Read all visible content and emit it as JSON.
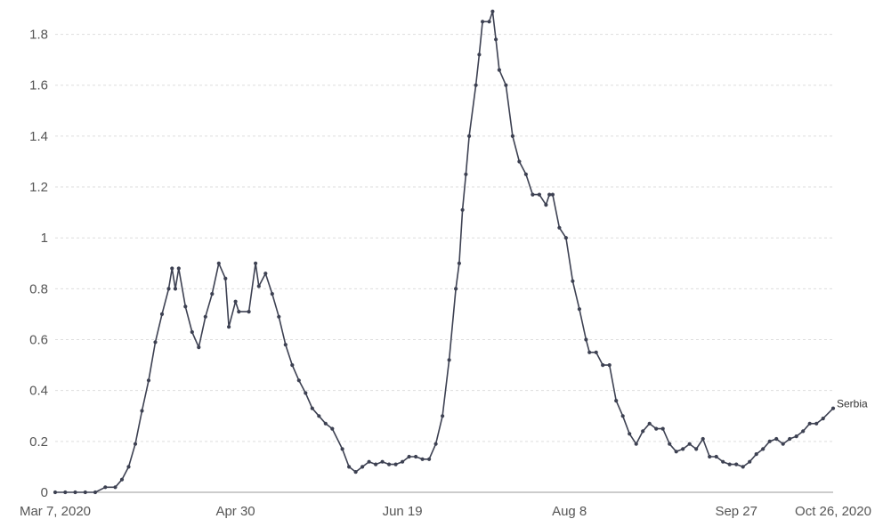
{
  "chart_data": {
    "type": "line",
    "title": "",
    "xlabel": "",
    "ylabel": "",
    "x_ticks": [
      "Mar 7, 2020",
      "Apr 30",
      "Jun 19",
      "Aug 8",
      "Sep 27",
      "Oct 26, 2020"
    ],
    "x_range": [
      "2020-03-07",
      "2020-10-26"
    ],
    "ylim": [
      0,
      1.9
    ],
    "y_ticks": [
      "0",
      "0.2",
      "0.4",
      "0.6",
      "0.8",
      "1",
      "1.2",
      "1.4",
      "1.6",
      "1.8"
    ],
    "y_tick_values": [
      0,
      0.2,
      0.4,
      0.6,
      0.8,
      1.0,
      1.2,
      1.4,
      1.6,
      1.8
    ],
    "grid": true,
    "colors": {
      "line": "#3d4152",
      "grid": "#dddddd"
    },
    "series": [
      {
        "name": "Serbia",
        "points": [
          [
            "2020-03-07",
            0.0
          ],
          [
            "2020-03-10",
            0.0
          ],
          [
            "2020-03-13",
            0.0
          ],
          [
            "2020-03-16",
            0.0
          ],
          [
            "2020-03-19",
            0.0
          ],
          [
            "2020-03-22",
            0.02
          ],
          [
            "2020-03-25",
            0.02
          ],
          [
            "2020-03-27",
            0.05
          ],
          [
            "2020-03-29",
            0.1
          ],
          [
            "2020-03-31",
            0.19
          ],
          [
            "2020-04-02",
            0.32
          ],
          [
            "2020-04-04",
            0.44
          ],
          [
            "2020-04-06",
            0.59
          ],
          [
            "2020-04-08",
            0.7
          ],
          [
            "2020-04-10",
            0.8
          ],
          [
            "2020-04-11",
            0.88
          ],
          [
            "2020-04-12",
            0.8
          ],
          [
            "2020-04-13",
            0.88
          ],
          [
            "2020-04-15",
            0.73
          ],
          [
            "2020-04-17",
            0.63
          ],
          [
            "2020-04-19",
            0.57
          ],
          [
            "2020-04-21",
            0.69
          ],
          [
            "2020-04-23",
            0.78
          ],
          [
            "2020-04-25",
            0.9
          ],
          [
            "2020-04-27",
            0.84
          ],
          [
            "2020-04-28",
            0.65
          ],
          [
            "2020-04-30",
            0.75
          ],
          [
            "2020-05-01",
            0.71
          ],
          [
            "2020-05-04",
            0.71
          ],
          [
            "2020-05-06",
            0.9
          ],
          [
            "2020-05-07",
            0.81
          ],
          [
            "2020-05-09",
            0.86
          ],
          [
            "2020-05-11",
            0.78
          ],
          [
            "2020-05-13",
            0.69
          ],
          [
            "2020-05-15",
            0.58
          ],
          [
            "2020-05-17",
            0.5
          ],
          [
            "2020-05-19",
            0.44
          ],
          [
            "2020-05-21",
            0.39
          ],
          [
            "2020-05-23",
            0.33
          ],
          [
            "2020-05-25",
            0.3
          ],
          [
            "2020-05-27",
            0.27
          ],
          [
            "2020-05-29",
            0.25
          ],
          [
            "2020-06-01",
            0.17
          ],
          [
            "2020-06-03",
            0.1
          ],
          [
            "2020-06-05",
            0.08
          ],
          [
            "2020-06-07",
            0.1
          ],
          [
            "2020-06-09",
            0.12
          ],
          [
            "2020-06-11",
            0.11
          ],
          [
            "2020-06-13",
            0.12
          ],
          [
            "2020-06-15",
            0.11
          ],
          [
            "2020-06-17",
            0.11
          ],
          [
            "2020-06-19",
            0.12
          ],
          [
            "2020-06-21",
            0.14
          ],
          [
            "2020-06-23",
            0.14
          ],
          [
            "2020-06-25",
            0.13
          ],
          [
            "2020-06-27",
            0.13
          ],
          [
            "2020-06-29",
            0.19
          ],
          [
            "2020-07-01",
            0.3
          ],
          [
            "2020-07-03",
            0.52
          ],
          [
            "2020-07-05",
            0.8
          ],
          [
            "2020-07-06",
            0.9
          ],
          [
            "2020-07-07",
            1.11
          ],
          [
            "2020-07-08",
            1.25
          ],
          [
            "2020-07-09",
            1.4
          ],
          [
            "2020-07-11",
            1.6
          ],
          [
            "2020-07-12",
            1.72
          ],
          [
            "2020-07-13",
            1.85
          ],
          [
            "2020-07-15",
            1.85
          ],
          [
            "2020-07-16",
            1.89
          ],
          [
            "2020-07-17",
            1.78
          ],
          [
            "2020-07-18",
            1.66
          ],
          [
            "2020-07-20",
            1.6
          ],
          [
            "2020-07-22",
            1.4
          ],
          [
            "2020-07-24",
            1.3
          ],
          [
            "2020-07-26",
            1.25
          ],
          [
            "2020-07-28",
            1.17
          ],
          [
            "2020-07-30",
            1.17
          ],
          [
            "2020-08-01",
            1.13
          ],
          [
            "2020-08-02",
            1.17
          ],
          [
            "2020-08-03",
            1.17
          ],
          [
            "2020-08-05",
            1.04
          ],
          [
            "2020-08-07",
            1.0
          ],
          [
            "2020-08-09",
            0.83
          ],
          [
            "2020-08-11",
            0.72
          ],
          [
            "2020-08-13",
            0.6
          ],
          [
            "2020-08-14",
            0.55
          ],
          [
            "2020-08-16",
            0.55
          ],
          [
            "2020-08-18",
            0.5
          ],
          [
            "2020-08-20",
            0.5
          ],
          [
            "2020-08-22",
            0.36
          ],
          [
            "2020-08-24",
            0.3
          ],
          [
            "2020-08-26",
            0.23
          ],
          [
            "2020-08-28",
            0.19
          ],
          [
            "2020-08-30",
            0.24
          ],
          [
            "2020-09-01",
            0.27
          ],
          [
            "2020-09-03",
            0.25
          ],
          [
            "2020-09-05",
            0.25
          ],
          [
            "2020-09-07",
            0.19
          ],
          [
            "2020-09-09",
            0.16
          ],
          [
            "2020-09-11",
            0.17
          ],
          [
            "2020-09-13",
            0.19
          ],
          [
            "2020-09-15",
            0.17
          ],
          [
            "2020-09-17",
            0.21
          ],
          [
            "2020-09-19",
            0.14
          ],
          [
            "2020-09-21",
            0.14
          ],
          [
            "2020-09-23",
            0.12
          ],
          [
            "2020-09-25",
            0.11
          ],
          [
            "2020-09-27",
            0.11
          ],
          [
            "2020-09-29",
            0.1
          ],
          [
            "2020-10-01",
            0.12
          ],
          [
            "2020-10-03",
            0.15
          ],
          [
            "2020-10-05",
            0.17
          ],
          [
            "2020-10-07",
            0.2
          ],
          [
            "2020-10-09",
            0.21
          ],
          [
            "2020-10-11",
            0.19
          ],
          [
            "2020-10-13",
            0.21
          ],
          [
            "2020-10-15",
            0.22
          ],
          [
            "2020-10-17",
            0.24
          ],
          [
            "2020-10-19",
            0.27
          ],
          [
            "2020-10-21",
            0.27
          ],
          [
            "2020-10-23",
            0.29
          ],
          [
            "2020-10-26",
            0.33
          ]
        ]
      }
    ]
  }
}
